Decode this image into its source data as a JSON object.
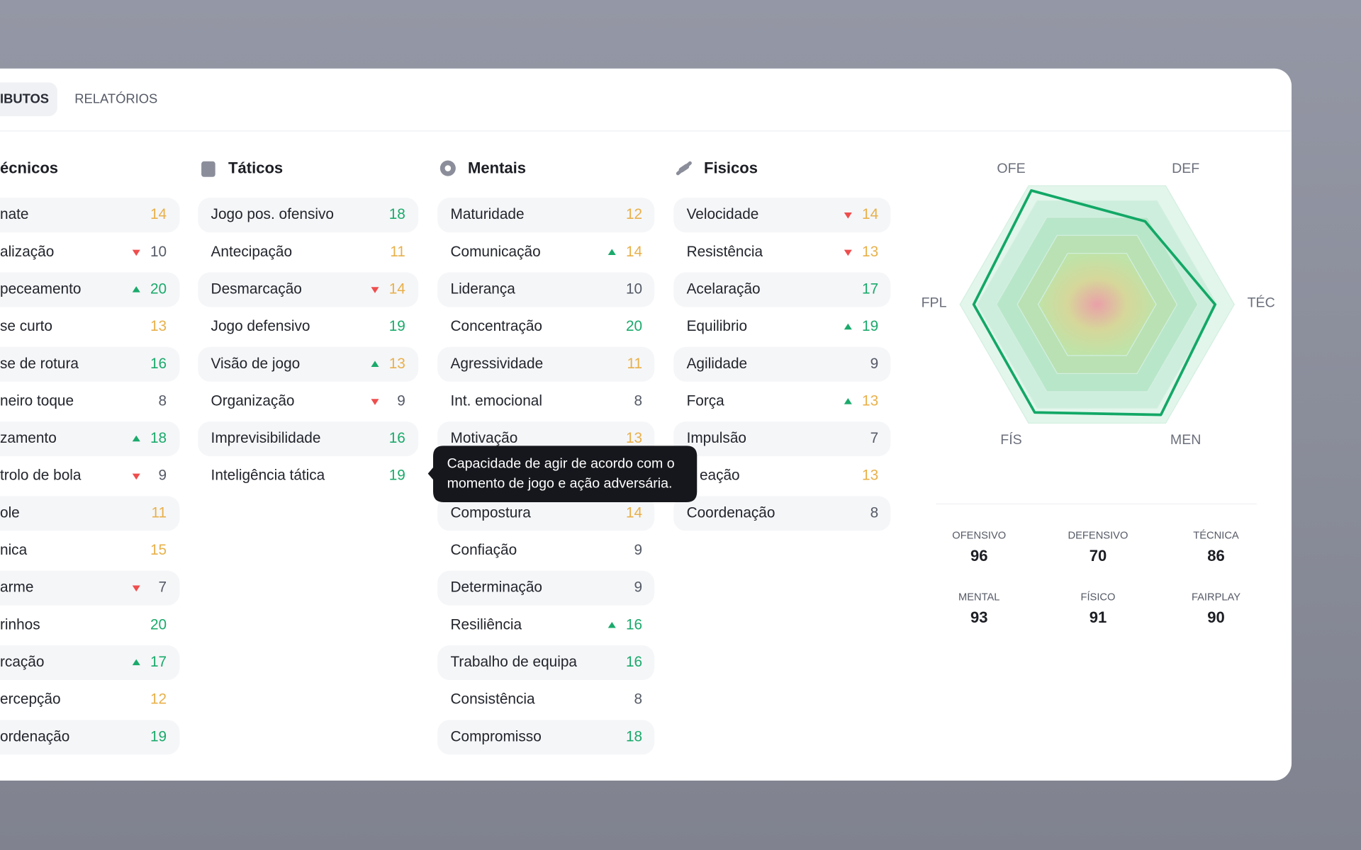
{
  "tabs": [
    "IBUTOS",
    "RELATÓRIOS"
  ],
  "columns": [
    {
      "title": "écnicos",
      "rows": [
        {
          "label": "nate",
          "value": 14
        },
        {
          "label": "alização",
          "value": 10,
          "trend": "down"
        },
        {
          "label": "peceamento",
          "value": 20,
          "trend": "up"
        },
        {
          "label": "se curto",
          "value": 13
        },
        {
          "label": "se de rotura",
          "value": 16
        },
        {
          "label": "neiro toque",
          "value": 8
        },
        {
          "label": "zamento",
          "value": 18,
          "trend": "up"
        },
        {
          "label": "trolo de bola",
          "value": 9,
          "trend": "down"
        },
        {
          "label": "ole",
          "value": 11
        },
        {
          "label": "nica",
          "value": 15
        },
        {
          "label": "arme",
          "value": 7,
          "trend": "down"
        },
        {
          "label": "rinhos",
          "value": 20
        },
        {
          "label": "rcação",
          "value": 17,
          "trend": "up"
        },
        {
          "label": "ercepção",
          "value": 12
        },
        {
          "label": "ordenação",
          "value": 19
        }
      ]
    },
    {
      "title": "Táticos",
      "rows": [
        {
          "label": "Jogo pos. ofensivo",
          "value": 18
        },
        {
          "label": "Antecipação",
          "value": 11
        },
        {
          "label": "Desmarcação",
          "value": 14,
          "trend": "down"
        },
        {
          "label": "Jogo defensivo",
          "value": 19
        },
        {
          "label": "Visão de jogo",
          "value": 13,
          "trend": "up"
        },
        {
          "label": "Organização",
          "value": 9,
          "trend": "down"
        },
        {
          "label": "Imprevisibilidade",
          "value": 16
        },
        {
          "label": "Inteligência tática",
          "value": 19
        }
      ]
    },
    {
      "title": "Mentais",
      "rows": [
        {
          "label": "Maturidade",
          "value": 12
        },
        {
          "label": "Comunicação",
          "value": 14,
          "trend": "up"
        },
        {
          "label": "Liderança",
          "value": 10
        },
        {
          "label": "Concentração",
          "value": 20
        },
        {
          "label": "Agressividade",
          "value": 11
        },
        {
          "label": "Int. emocional",
          "value": 8
        },
        {
          "label": "Motivação",
          "value": 13
        },
        null,
        {
          "label": "Compostura",
          "value": 14
        },
        {
          "label": "Confiação",
          "value": 9
        },
        {
          "label": "Determinação",
          "value": 9
        },
        {
          "label": "Resiliência",
          "value": 16,
          "trend": "up"
        },
        {
          "label": "Trabalho de equipa",
          "value": 16
        },
        {
          "label": "Consistência",
          "value": 8
        },
        {
          "label": "Compromisso",
          "value": 18
        }
      ]
    },
    {
      "title": "Fisicos",
      "rows": [
        {
          "label": "Velocidade",
          "value": 14,
          "trend": "down"
        },
        {
          "label": "Resistência",
          "value": 13,
          "trend": "down"
        },
        {
          "label": "Acelaração",
          "value": 17
        },
        {
          "label": "Equilibrio",
          "value": 19,
          "trend": "up"
        },
        {
          "label": "Agilidade",
          "value": 9
        },
        {
          "label": "Força",
          "value": 13,
          "trend": "up"
        },
        {
          "label": "Impulsão",
          "value": 7
        },
        {
          "label": "eação",
          "value": 13
        },
        {
          "label": "Coordenação",
          "value": 8
        }
      ]
    }
  ],
  "tooltip": {
    "lines": [
      "Capacidade de agir de acordo com o",
      "momento de jogo  e ação adversária."
    ]
  },
  "radar": {
    "axes": [
      "OFE",
      "DEF",
      "TÉC",
      "MEN",
      "FÍS",
      "FPL"
    ]
  },
  "stats": [
    {
      "label": "OFENSIVO",
      "value": 96
    },
    {
      "label": "DEFENSIVO",
      "value": 70
    },
    {
      "label": "TÉCNICA",
      "value": 86
    },
    {
      "label": "MENTAL",
      "value": 93
    },
    {
      "label": "FÍSICO",
      "value": 91
    },
    {
      "label": "FAIRPLAY",
      "value": 90
    }
  ]
}
